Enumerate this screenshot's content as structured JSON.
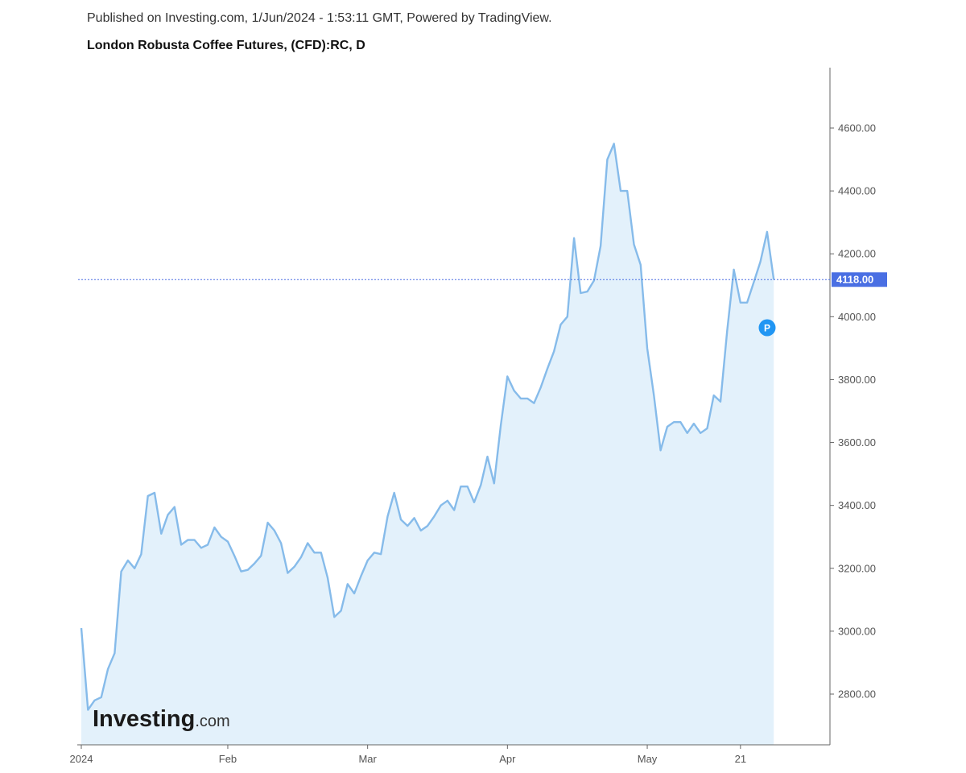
{
  "header": {
    "published": "Published on Investing.com, 1/Jun/2024 - 1:53:11 GMT, Powered by TradingView.",
    "title": "London Robusta Coffee Futures, (CFD):RC, D"
  },
  "logo": {
    "main": "Investing",
    "suffix": ".com"
  },
  "marker": {
    "label": "P",
    "color": "#2196f3",
    "x_index": 107,
    "y": 3965
  },
  "colors": {
    "line": "#86bbea",
    "fill": "#e3f1fb",
    "last_price": "#4a6fe3",
    "axis": "#555555"
  },
  "chart_data": {
    "type": "area",
    "title": "London Robusta Coffee Futures, (CFD):RC, D",
    "ylim": [
      2650,
      4790
    ],
    "y_ticks": [
      2800,
      3000,
      3200,
      3400,
      3600,
      3800,
      4000,
      4200,
      4400,
      4600
    ],
    "y_tick_labels": [
      "2800.00",
      "3000.00",
      "3200.00",
      "3400.00",
      "3600.00",
      "3800.00",
      "4000.00",
      "4200.00",
      "4400.00",
      "4600.00"
    ],
    "x_ticks": [
      {
        "label": "2024",
        "index": 0
      },
      {
        "label": "Feb",
        "index": 22
      },
      {
        "label": "Mar",
        "index": 43
      },
      {
        "label": "Apr",
        "index": 64
      },
      {
        "label": "May",
        "index": 85
      },
      {
        "label": "21",
        "index": 99
      }
    ],
    "x_range": [
      0,
      107
    ],
    "last_price": 4118.0,
    "last_price_label": "4118.00",
    "values": [
      3010,
      2750,
      2780,
      2790,
      2880,
      2930,
      3190,
      3225,
      3200,
      3245,
      3430,
      3440,
      3310,
      3370,
      3395,
      3275,
      3290,
      3290,
      3265,
      3275,
      3330,
      3300,
      3285,
      3240,
      3190,
      3195,
      3215,
      3240,
      3345,
      3320,
      3280,
      3185,
      3205,
      3235,
      3280,
      3250,
      3250,
      3170,
      3045,
      3065,
      3150,
      3120,
      3175,
      3225,
      3250,
      3245,
      3365,
      3440,
      3355,
      3335,
      3360,
      3320,
      3335,
      3365,
      3400,
      3415,
      3385,
      3460,
      3460,
      3410,
      3465,
      3555,
      3470,
      3655,
      3810,
      3765,
      3740,
      3740,
      3725,
      3775,
      3835,
      3890,
      3975,
      4000,
      4250,
      4075,
      4080,
      4115,
      4225,
      4500,
      4550,
      4400,
      4400,
      4230,
      4165,
      3900,
      3750,
      3575,
      3650,
      3665,
      3665,
      3630,
      3660,
      3630,
      3645,
      3750,
      3730,
      3955,
      4150,
      4045,
      4045,
      4110,
      4175,
      4270,
      4118
    ]
  }
}
